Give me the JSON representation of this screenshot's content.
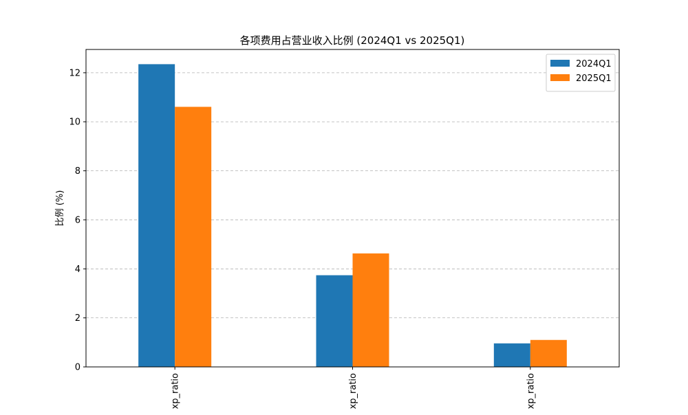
{
  "chart_data": {
    "type": "bar",
    "title": "各项费用占营业收入比例 (2024Q1 vs 2025Q1)",
    "xlabel": "",
    "ylabel": "比例 (%)",
    "categories": [
      "xp_ratio",
      "xp_ratio",
      "xp_ratio"
    ],
    "series": [
      {
        "name": "2024Q1",
        "color": "#1f77b4",
        "values": [
          12.35,
          3.74,
          0.96
        ]
      },
      {
        "name": "2025Q1",
        "color": "#ff7f0e",
        "values": [
          10.61,
          4.63,
          1.1
        ]
      }
    ],
    "ylim": [
      0,
      12.95
    ],
    "yticks": [
      0,
      2,
      4,
      6,
      8,
      10,
      12
    ],
    "grid": "y-dashed",
    "legend_position": "top-right"
  }
}
